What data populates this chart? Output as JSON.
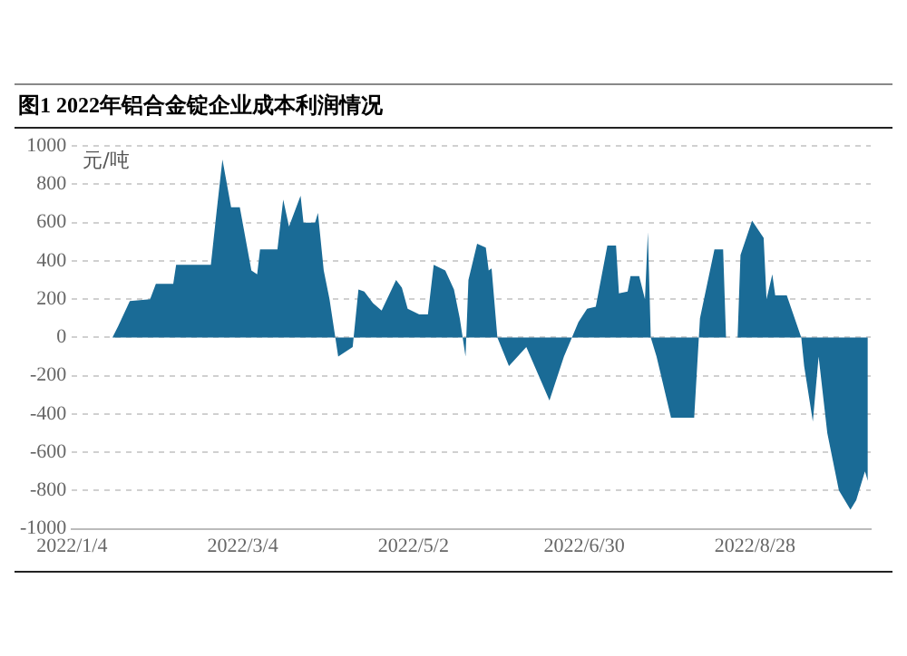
{
  "chart_data": {
    "type": "area",
    "title": "图1 2022年铝合金锭企业成本利润情况",
    "ylabel": "元/吨",
    "x": [
      "2022-01-18",
      "2022-01-20",
      "2022-01-24",
      "2022-01-31",
      "2022-02-02",
      "2022-02-08",
      "2022-02-09",
      "2022-02-21",
      "2022-02-23",
      "2022-02-25",
      "2022-02-28",
      "2022-03-03",
      "2022-03-07",
      "2022-03-09",
      "2022-03-10",
      "2022-03-16",
      "2022-03-18",
      "2022-03-20",
      "2022-03-24",
      "2022-03-25",
      "2022-03-29",
      "2022-03-30",
      "2022-04-01",
      "2022-04-03",
      "2022-04-06",
      "2022-04-11",
      "2022-04-13",
      "2022-04-15",
      "2022-04-18",
      "2022-04-21",
      "2022-04-26",
      "2022-04-28",
      "2022-04-30",
      "2022-05-04",
      "2022-05-07",
      "2022-05-09",
      "2022-05-13",
      "2022-05-16",
      "2022-05-18",
      "2022-05-20",
      "2022-05-21",
      "2022-05-24",
      "2022-05-27",
      "2022-05-28",
      "2022-05-29",
      "2022-05-31",
      "2022-06-04",
      "2022-06-10",
      "2022-06-18",
      "2022-06-23",
      "2022-06-28",
      "2022-07-01",
      "2022-07-04",
      "2022-07-08",
      "2022-07-11",
      "2022-07-12",
      "2022-07-15",
      "2022-07-16",
      "2022-07-19",
      "2022-07-21",
      "2022-07-22",
      "2022-07-23",
      "2022-07-25",
      "2022-07-30",
      "2022-08-07",
      "2022-08-09",
      "2022-08-14",
      "2022-08-17",
      "2022-08-18",
      "2022-08-22",
      "2022-08-23",
      "2022-08-27",
      "2022-08-31",
      "2022-09-01",
      "2022-09-03",
      "2022-09-04",
      "2022-09-08",
      "2022-09-13",
      "2022-09-14",
      "2022-09-17",
      "2022-09-19",
      "2022-09-22",
      "2022-09-26",
      "2022-09-30",
      "2022-10-02",
      "2022-10-05",
      "2022-10-06"
    ],
    "series": [
      {
        "color": "#1a6b96",
        "values": [
          0,
          60,
          190,
          200,
          280,
          280,
          380,
          380,
          660,
          930,
          680,
          680,
          350,
          330,
          460,
          460,
          720,
          580,
          740,
          600,
          600,
          650,
          350,
          200,
          -100,
          -50,
          250,
          240,
          180,
          140,
          300,
          260,
          150,
          120,
          120,
          380,
          350,
          250,
          100,
          -100,
          300,
          490,
          470,
          350,
          360,
          0,
          -150,
          -50,
          -330,
          -100,
          80,
          150,
          160,
          480,
          480,
          230,
          240,
          320,
          320,
          200,
          550,
          0,
          -100,
          -420,
          -420,
          100,
          460,
          460,
          0,
          0,
          430,
          610,
          520,
          200,
          330,
          220,
          220,
          0,
          -150,
          -440,
          -100,
          -500,
          -800,
          -900,
          -850,
          -700,
          -750
        ]
      }
    ],
    "xlim": [
      "2022-01-04",
      "2022-10-07"
    ],
    "xticks": [
      {
        "value": "2022-01-04",
        "label": "2022/1/4"
      },
      {
        "value": "2022-03-04",
        "label": "2022/3/4"
      },
      {
        "value": "2022-05-02",
        "label": "2022/5/2"
      },
      {
        "value": "2022-06-30",
        "label": "2022/6/30"
      },
      {
        "value": "2022-08-28",
        "label": "2022/8/28"
      }
    ],
    "ylim": [
      -1000,
      1000
    ],
    "yticks": [
      -1000,
      -800,
      -600,
      -400,
      -200,
      0,
      200,
      400,
      600,
      800,
      1000
    ],
    "grid": "y"
  }
}
